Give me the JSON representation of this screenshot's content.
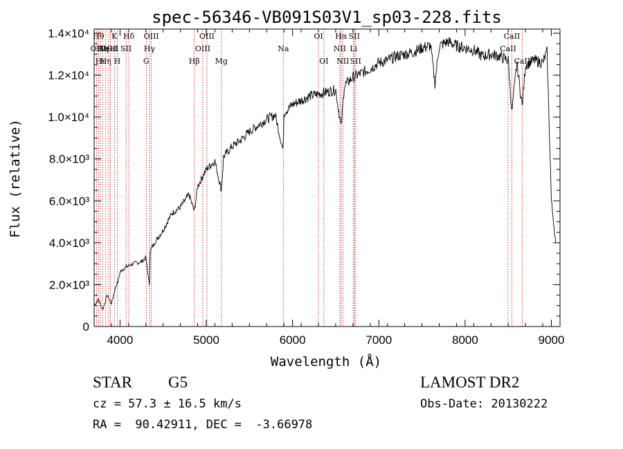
{
  "chart_data": {
    "type": "line",
    "title": "spec-56346-VB091S03V1_sp03-228.fits",
    "xlabel": "Wavelength (Å)",
    "ylabel": "Flux (relative)",
    "xlim": [
      3700,
      9100
    ],
    "ylim": [
      0,
      14200
    ],
    "x_ticks": [
      {
        "value": 4000,
        "label": "4000"
      },
      {
        "value": 5000,
        "label": "5000"
      },
      {
        "value": 6000,
        "label": "6000"
      },
      {
        "value": 7000,
        "label": "7000"
      },
      {
        "value": 8000,
        "label": "8000"
      },
      {
        "value": 9000,
        "label": "9000"
      }
    ],
    "y_ticks": [
      {
        "value": 0,
        "label": "0"
      },
      {
        "value": 2000,
        "label": "2.0×10³"
      },
      {
        "value": 4000,
        "label": "4.0×10³"
      },
      {
        "value": 6000,
        "label": "6.0×10³"
      },
      {
        "value": 8000,
        "label": "8.0×10³"
      },
      {
        "value": 10000,
        "label": "1.0×10⁴"
      },
      {
        "value": 12000,
        "label": "1.2×10⁴"
      },
      {
        "value": 14000,
        "label": "1.4×10⁴"
      }
    ],
    "series": [
      {
        "x": [
          3700,
          3750,
          3800,
          3850,
          3900,
          3950,
          3980,
          4000,
          4050,
          4100,
          4150,
          4200,
          4250,
          4300,
          4340,
          4350,
          4400,
          4450,
          4500,
          4600,
          4700,
          4800,
          4861,
          4900,
          5000,
          5100,
          5175,
          5200,
          5300,
          5400,
          5500,
          5600,
          5700,
          5800,
          5890,
          5900,
          6000,
          6100,
          6200,
          6300,
          6400,
          6500,
          6563,
          6600,
          6700,
          6800,
          6900,
          7000,
          7100,
          7200,
          7300,
          7400,
          7500,
          7600,
          7650,
          7700,
          7800,
          7900,
          8000,
          8100,
          8200,
          8300,
          8400,
          8500,
          8542,
          8600,
          8662,
          8700,
          8800,
          8900,
          8950,
          9000,
          9050
        ],
        "y": [
          1000,
          1300,
          800,
          1500,
          1100,
          1900,
          2200,
          2600,
          2800,
          2900,
          3000,
          3050,
          3100,
          3300,
          2000,
          3600,
          4000,
          4300,
          4600,
          5400,
          5700,
          6300,
          5500,
          6700,
          7500,
          7900,
          6500,
          8100,
          8600,
          8900,
          9300,
          9600,
          9900,
          10100,
          8400,
          10200,
          10600,
          10800,
          11000,
          11100,
          11200,
          11300,
          9500,
          11500,
          11900,
          12100,
          12300,
          12600,
          12700,
          12900,
          13000,
          13100,
          13300,
          13400,
          11600,
          13400,
          13600,
          13400,
          13300,
          13200,
          12900,
          13000,
          12900,
          12700,
          10200,
          12600,
          10500,
          12500,
          12700,
          12600,
          13100,
          6000,
          4000
        ]
      }
    ],
    "lines": [
      {
        "x": 3727,
        "label": "OII",
        "row": 1
      },
      {
        "x": 3750,
        "label": "Hθ",
        "row": 0
      },
      {
        "x": 3770,
        "label": "Hι",
        "row": 2
      },
      {
        "x": 3798,
        "label": "Hη",
        "row": 1
      },
      {
        "x": 3835,
        "label": "Hη",
        "row": 2
      },
      {
        "x": 3869,
        "label": "NeIII",
        "row": 1
      },
      {
        "x": 3889,
        "label": "HeI",
        "row": 1
      },
      {
        "x": 3934,
        "label": "K",
        "row": 0
      },
      {
        "x": 3968,
        "label": "H",
        "row": 2
      },
      {
        "x": 4070,
        "label": "SII",
        "row": 1
      },
      {
        "x": 4101,
        "label": "Hδ",
        "row": 0
      },
      {
        "x": 4304,
        "label": "G",
        "row": 2
      },
      {
        "x": 4341,
        "label": "Hγ",
        "row": 1
      },
      {
        "x": 4363,
        "label": "OIII",
        "row": 0
      },
      {
        "x": 4861,
        "label": "Hβ",
        "row": 2
      },
      {
        "x": 4959,
        "label": "OIII",
        "row": 1
      },
      {
        "x": 5007,
        "label": "OIII",
        "row": 0
      },
      {
        "x": 5175,
        "label": "Mg",
        "row": 2
      },
      {
        "x": 5893,
        "label": "Na",
        "row": 1
      },
      {
        "x": 6300,
        "label": "OI",
        "row": 0
      },
      {
        "x": 6363,
        "label": "OI",
        "row": 2
      },
      {
        "x": 6548,
        "label": "NII",
        "row": 1
      },
      {
        "x": 6563,
        "label": "Hα",
        "row": 0
      },
      {
        "x": 6583,
        "label": "NII",
        "row": 2
      },
      {
        "x": 6707,
        "label": "Li",
        "row": 1
      },
      {
        "x": 6716,
        "label": "SII",
        "row": 0
      },
      {
        "x": 6731,
        "label": "SII",
        "row": 2
      },
      {
        "x": 8498,
        "label": "CaII",
        "row": 1
      },
      {
        "x": 8542,
        "label": "CaII",
        "row": 0
      },
      {
        "x": 8662,
        "label": "CaII",
        "row": 2
      }
    ]
  },
  "info": {
    "class": "STAR",
    "subclass": "G5",
    "survey": "LAMOST DR2",
    "cz": "cz = 57.3 ± 16.5 km/s",
    "obs_date": "Obs-Date: 20130222",
    "radec": "RA =  90.42911, DEC =  -3.66978"
  }
}
